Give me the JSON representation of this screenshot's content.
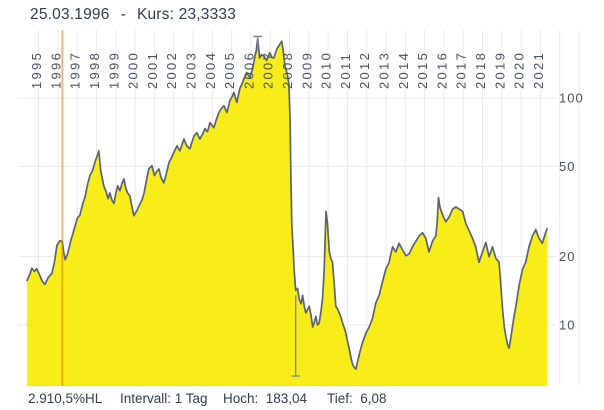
{
  "header": {
    "date": "25.03.1996",
    "separator": "-",
    "kurs": "Kurs: 23,3333"
  },
  "status": {
    "items": [
      {
        "text": "2.910,5%HL"
      },
      {
        "text": "Intervall: 1 Tag"
      },
      {
        "text": "Hoch:  183,04"
      },
      {
        "text": "Tief:  6,08"
      }
    ]
  },
  "colors": {
    "area_fill": "#F8EB00",
    "line": "#5A646E",
    "grid": "#E9E9E9",
    "selected_date_line": "#ED7D0A",
    "marker": "#7E868E",
    "title_text": "#2E3E4E",
    "axis_text": "#47525C"
  },
  "chart_data": {
    "type": "area",
    "title": "25.03.1996 - Kurs: 23,3333",
    "xlabel": "",
    "ylabel": "",
    "x_axis": {
      "ticks": [
        1995,
        1996,
        1997,
        1998,
        1999,
        2000,
        2001,
        2002,
        2003,
        2004,
        2005,
        2006,
        2007,
        2008,
        2009,
        2010,
        2011,
        2012,
        2013,
        2014,
        2015,
        2016,
        2017,
        2018,
        2019,
        2020,
        2021
      ],
      "grid_last_year": 2023
    },
    "y_axis": {
      "scale": "log",
      "ticks": [
        10,
        20,
        50,
        100
      ],
      "ylim": [
        5.4,
        200
      ]
    },
    "legend": "none",
    "grid": true,
    "selected_date": {
      "year": 1996.23,
      "label": "25.03.1996",
      "value": 23.3333
    },
    "markers": [
      {
        "name": "hoch",
        "year": 2006.35,
        "value": 183.04
      },
      {
        "name": "tief",
        "year": 2008.32,
        "value": 6.08,
        "wick_from": 13.5
      }
    ],
    "series": [
      {
        "name": "Kurs",
        "points": [
          [
            1994.39,
            15.6
          ],
          [
            1994.55,
            16.8
          ],
          [
            1994.65,
            17.8
          ],
          [
            1994.78,
            17.2
          ],
          [
            1994.9,
            17.7
          ],
          [
            1995.05,
            16.6
          ],
          [
            1995.2,
            15.5
          ],
          [
            1995.33,
            15.1
          ],
          [
            1995.5,
            16.2
          ],
          [
            1995.69,
            16.9
          ],
          [
            1995.82,
            18.9
          ],
          [
            1995.95,
            22.4
          ],
          [
            1996.1,
            23.5
          ],
          [
            1996.23,
            23.33
          ],
          [
            1996.3,
            20.9
          ],
          [
            1996.38,
            19.4
          ],
          [
            1996.5,
            20.6
          ],
          [
            1996.67,
            23.5
          ],
          [
            1996.85,
            26.5
          ],
          [
            1997.0,
            29.5
          ],
          [
            1997.14,
            30.5
          ],
          [
            1997.28,
            34.0
          ],
          [
            1997.4,
            36.5
          ],
          [
            1997.55,
            42.0
          ],
          [
            1997.66,
            45.5
          ],
          [
            1997.8,
            48.0
          ],
          [
            1997.93,
            52.5
          ],
          [
            1998.05,
            56.0
          ],
          [
            1998.12,
            58.5
          ],
          [
            1998.22,
            48.0
          ],
          [
            1998.38,
            41.0
          ],
          [
            1998.5,
            38.5
          ],
          [
            1998.6,
            36.0
          ],
          [
            1998.69,
            38.2
          ],
          [
            1998.8,
            35.5
          ],
          [
            1998.9,
            34.3
          ],
          [
            1999.0,
            38.0
          ],
          [
            1999.1,
            41.0
          ],
          [
            1999.21,
            39.0
          ],
          [
            1999.32,
            42.0
          ],
          [
            1999.42,
            44.0
          ],
          [
            1999.52,
            40.0
          ],
          [
            1999.62,
            38.0
          ],
          [
            1999.73,
            37.0
          ],
          [
            1999.83,
            33.5
          ],
          [
            1999.94,
            30.3
          ],
          [
            2000.1,
            32.0
          ],
          [
            2000.2,
            33.5
          ],
          [
            2000.35,
            35.5
          ],
          [
            2000.46,
            38.0
          ],
          [
            2000.58,
            43.0
          ],
          [
            2000.71,
            48.7
          ],
          [
            2000.87,
            50.3
          ],
          [
            2001.0,
            45.5
          ],
          [
            2001.12,
            47.5
          ],
          [
            2001.23,
            48.7
          ],
          [
            2001.35,
            44.5
          ],
          [
            2001.49,
            42.3
          ],
          [
            2001.62,
            46.5
          ],
          [
            2001.75,
            51.8
          ],
          [
            2001.88,
            54.5
          ],
          [
            2002.0,
            57.4
          ],
          [
            2002.17,
            61.5
          ],
          [
            2002.32,
            58.4
          ],
          [
            2002.45,
            63.0
          ],
          [
            2002.53,
            66.0
          ],
          [
            2002.68,
            61.5
          ],
          [
            2002.84,
            59.7
          ],
          [
            2002.95,
            64.0
          ],
          [
            2003.05,
            68.0
          ],
          [
            2003.2,
            70.3
          ],
          [
            2003.36,
            66.0
          ],
          [
            2003.5,
            69.5
          ],
          [
            2003.62,
            73.3
          ],
          [
            2003.75,
            71.0
          ],
          [
            2003.88,
            77.9
          ],
          [
            2004.0,
            75.5
          ],
          [
            2004.08,
            74.0
          ],
          [
            2004.2,
            80.0
          ],
          [
            2004.34,
            86.2
          ],
          [
            2004.45,
            89.5
          ],
          [
            2004.6,
            92.5
          ],
          [
            2004.76,
            86.2
          ],
          [
            2004.91,
            97.6
          ],
          [
            2005.02,
            101.0
          ],
          [
            2005.12,
            105.8
          ],
          [
            2005.27,
            95.6
          ],
          [
            2005.43,
            110.2
          ],
          [
            2005.55,
            116.0
          ],
          [
            2005.64,
            121.7
          ],
          [
            2005.79,
            129.5
          ],
          [
            2005.95,
            123.0
          ],
          [
            2006.1,
            135.0
          ],
          [
            2006.2,
            152.0
          ],
          [
            2006.28,
            162.0
          ],
          [
            2006.35,
            183.04
          ],
          [
            2006.45,
            150.0
          ],
          [
            2006.55,
            155.0
          ],
          [
            2006.67,
            153.3
          ],
          [
            2006.82,
            146.3
          ],
          [
            2006.98,
            158.3
          ],
          [
            2007.1,
            151.0
          ],
          [
            2007.19,
            150.0
          ],
          [
            2007.34,
            164.4
          ],
          [
            2007.5,
            172.7
          ],
          [
            2007.6,
            177.9
          ],
          [
            2007.68,
            160.0
          ],
          [
            2007.76,
            138.6
          ],
          [
            2007.88,
            128.0
          ],
          [
            2007.97,
            115.0
          ],
          [
            2008.03,
            80.0
          ],
          [
            2008.07,
            45.0
          ],
          [
            2008.12,
            28.0
          ],
          [
            2008.2,
            20.5
          ],
          [
            2008.24,
            17.6
          ],
          [
            2008.32,
            14.2
          ],
          [
            2008.42,
            14.5
          ],
          [
            2008.5,
            13.0
          ],
          [
            2008.6,
            12.4
          ],
          [
            2008.68,
            13.5
          ],
          [
            2008.77,
            12.0
          ],
          [
            2008.85,
            11.3
          ],
          [
            2009.02,
            12.1
          ],
          [
            2009.12,
            11.0
          ],
          [
            2009.2,
            9.8
          ],
          [
            2009.3,
            10.4
          ],
          [
            2009.37,
            10.9
          ],
          [
            2009.45,
            10.0
          ],
          [
            2009.54,
            10.2
          ],
          [
            2009.63,
            11.5
          ],
          [
            2009.71,
            13.0
          ],
          [
            2009.8,
            17.6
          ],
          [
            2009.89,
            31.7
          ],
          [
            2009.97,
            27.9
          ],
          [
            2010.06,
            21.0
          ],
          [
            2010.15,
            19.5
          ],
          [
            2010.23,
            18.9
          ],
          [
            2010.32,
            15.0
          ],
          [
            2010.4,
            12.1
          ],
          [
            2010.5,
            11.7
          ],
          [
            2010.58,
            11.3
          ],
          [
            2010.67,
            10.8
          ],
          [
            2010.75,
            10.2
          ],
          [
            2010.84,
            9.7
          ],
          [
            2010.92,
            9.2
          ],
          [
            2011.0,
            8.5
          ],
          [
            2011.09,
            7.9
          ],
          [
            2011.18,
            7.2
          ],
          [
            2011.27,
            6.7
          ],
          [
            2011.36,
            6.5
          ],
          [
            2011.44,
            6.4
          ],
          [
            2011.53,
            6.9
          ],
          [
            2011.61,
            7.4
          ],
          [
            2011.7,
            7.9
          ],
          [
            2011.79,
            8.4
          ],
          [
            2011.88,
            8.8
          ],
          [
            2011.96,
            9.2
          ],
          [
            2012.13,
            9.8
          ],
          [
            2012.3,
            10.7
          ],
          [
            2012.47,
            12.5
          ],
          [
            2012.64,
            13.5
          ],
          [
            2012.82,
            15.5
          ],
          [
            2012.99,
            17.6
          ],
          [
            2013.16,
            18.9
          ],
          [
            2013.25,
            20.5
          ],
          [
            2013.34,
            22.1
          ],
          [
            2013.51,
            21.0
          ],
          [
            2013.68,
            22.9
          ],
          [
            2013.86,
            21.4
          ],
          [
            2014.03,
            20.2
          ],
          [
            2014.2,
            20.6
          ],
          [
            2014.37,
            22.1
          ],
          [
            2014.55,
            23.4
          ],
          [
            2014.72,
            24.7
          ],
          [
            2014.89,
            25.5
          ],
          [
            2015.06,
            24.1
          ],
          [
            2015.23,
            21.0
          ],
          [
            2015.41,
            23.4
          ],
          [
            2015.58,
            24.7
          ],
          [
            2015.65,
            28.0
          ],
          [
            2015.72,
            36.4
          ],
          [
            2015.8,
            33.0
          ],
          [
            2015.93,
            30.6
          ],
          [
            2016.1,
            28.5
          ],
          [
            2016.27,
            29.9
          ],
          [
            2016.45,
            32.4
          ],
          [
            2016.62,
            33.1
          ],
          [
            2016.79,
            32.4
          ],
          [
            2016.97,
            31.7
          ],
          [
            2017.14,
            27.9
          ],
          [
            2017.31,
            26.0
          ],
          [
            2017.48,
            24.1
          ],
          [
            2017.65,
            22.1
          ],
          [
            2017.82,
            18.9
          ],
          [
            2018.0,
            21.0
          ],
          [
            2018.17,
            23.1
          ],
          [
            2018.34,
            20.0
          ],
          [
            2018.52,
            22.1
          ],
          [
            2018.69,
            19.7
          ],
          [
            2018.86,
            18.9
          ],
          [
            2019.04,
            11.7
          ],
          [
            2019.13,
            9.8
          ],
          [
            2019.21,
            8.9
          ],
          [
            2019.3,
            8.2
          ],
          [
            2019.38,
            7.9
          ],
          [
            2019.47,
            8.8
          ],
          [
            2019.55,
            9.8
          ],
          [
            2019.64,
            11.0
          ],
          [
            2019.73,
            12.1
          ],
          [
            2019.9,
            15.0
          ],
          [
            2020.07,
            17.6
          ],
          [
            2020.24,
            18.9
          ],
          [
            2020.41,
            22.1
          ],
          [
            2020.59,
            24.7
          ],
          [
            2020.76,
            26.3
          ],
          [
            2020.93,
            24.1
          ],
          [
            2021.1,
            22.9
          ],
          [
            2021.27,
            25.5
          ],
          [
            2021.36,
            26.7
          ]
        ]
      }
    ]
  }
}
